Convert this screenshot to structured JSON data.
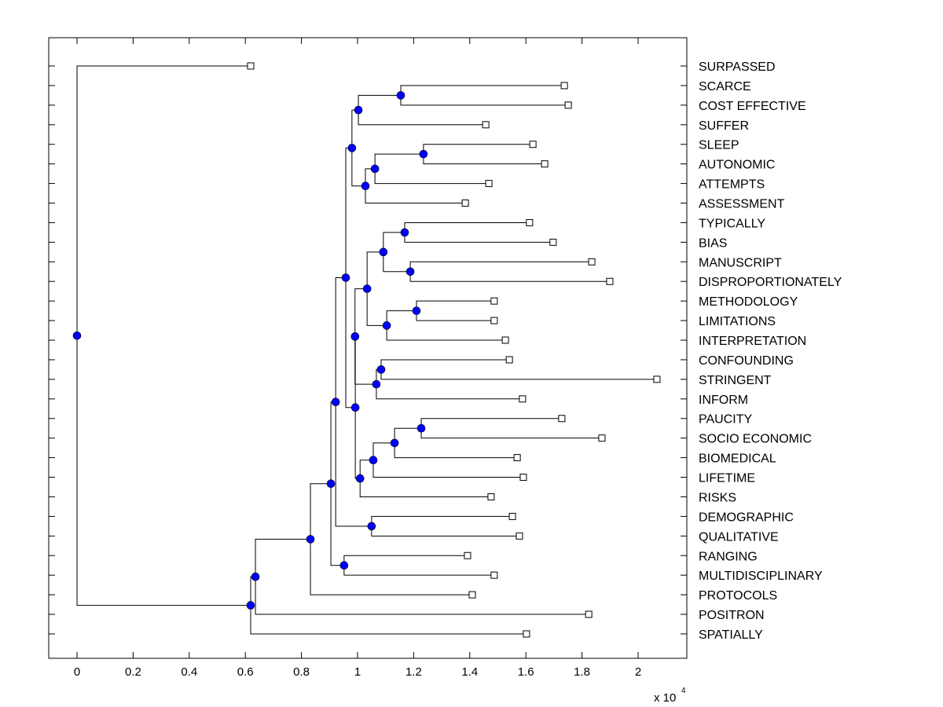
{
  "chart_data": {
    "type": "tree",
    "title": "",
    "xlabel": "",
    "ylabel": "",
    "x_multiplier_label": {
      "base": "x 10",
      "exponent": "4"
    },
    "xlim": [
      -0.1,
      2.17
    ],
    "xticks": [
      0,
      0.2,
      0.4,
      0.6,
      0.8,
      1,
      1.2,
      1.4,
      1.6,
      1.8,
      2
    ],
    "xtick_labels": [
      "0",
      "0.2",
      "0.4",
      "0.6",
      "0.8",
      "1",
      "1.2",
      "1.4",
      "1.6",
      "1.8",
      "2"
    ],
    "grid": false,
    "leaf_marker": "open-square",
    "node_marker": "filled-circle",
    "node_color": "#0000ff",
    "leaves": [
      {
        "id": "L0",
        "label": "SURPASSED",
        "x": 0.619
      },
      {
        "id": "L1",
        "label": "SCARCE",
        "x": 1.737
      },
      {
        "id": "L2",
        "label": "COST EFFECTIVE",
        "x": 1.751
      },
      {
        "id": "L3",
        "label": "SUFFER",
        "x": 1.457
      },
      {
        "id": "L4",
        "label": "SLEEP",
        "x": 1.625
      },
      {
        "id": "L5",
        "label": "AUTONOMIC",
        "x": 1.667
      },
      {
        "id": "L6",
        "label": "ATTEMPTS",
        "x": 1.468
      },
      {
        "id": "L7",
        "label": "ASSESSMENT",
        "x": 1.384
      },
      {
        "id": "L8",
        "label": "TYPICALLY",
        "x": 1.613
      },
      {
        "id": "L9",
        "label": "BIAS",
        "x": 1.697
      },
      {
        "id": "L10",
        "label": "MANUSCRIPT",
        "x": 1.835
      },
      {
        "id": "L11",
        "label": "DISPROPORTIONATELY",
        "x": 1.899
      },
      {
        "id": "L12",
        "label": "METHODOLOGY",
        "x": 1.487
      },
      {
        "id": "L13",
        "label": "LIMITATIONS",
        "x": 1.487
      },
      {
        "id": "L14",
        "label": "INTERPRETATION",
        "x": 1.527
      },
      {
        "id": "L15",
        "label": "CONFOUNDING",
        "x": 1.541
      },
      {
        "id": "L16",
        "label": "STRINGENT",
        "x": 2.067
      },
      {
        "id": "L17",
        "label": "INFORM",
        "x": 1.588
      },
      {
        "id": "L18",
        "label": "PAUCITY",
        "x": 1.728
      },
      {
        "id": "L19",
        "label": "SOCIO ECONOMIC",
        "x": 1.871
      },
      {
        "id": "L20",
        "label": "BIOMEDICAL",
        "x": 1.569
      },
      {
        "id": "L21",
        "label": "LIFETIME",
        "x": 1.591
      },
      {
        "id": "L22",
        "label": "RISKS",
        "x": 1.476
      },
      {
        "id": "L23",
        "label": "DEMOGRAPHIC",
        "x": 1.552
      },
      {
        "id": "L24",
        "label": "QUALITATIVE",
        "x": 1.577
      },
      {
        "id": "L25",
        "label": "RANGING",
        "x": 1.392
      },
      {
        "id": "L26",
        "label": "MULTIDISCIPLINARY",
        "x": 1.487
      },
      {
        "id": "L27",
        "label": "PROTOCOLS",
        "x": 1.409
      },
      {
        "id": "L28",
        "label": "POSITRON",
        "x": 1.824
      },
      {
        "id": "L29",
        "label": "SPATIALLY",
        "x": 1.602
      }
    ],
    "nodes": [
      {
        "id": "root",
        "x": 0.0,
        "children": [
          "L0",
          "N_sp"
        ]
      },
      {
        "id": "N_sp",
        "x": 0.619,
        "children": [
          "N_pos",
          "L29"
        ]
      },
      {
        "id": "N_pos",
        "x": 0.636,
        "children": [
          "N_prot",
          "L28"
        ]
      },
      {
        "id": "N_prot",
        "x": 0.832,
        "children": [
          "N_big",
          "L27"
        ]
      },
      {
        "id": "N_big",
        "x": 0.905,
        "children": [
          "N_a",
          "N_rang"
        ]
      },
      {
        "id": "N_rang",
        "x": 0.952,
        "children": [
          "L25",
          "L26"
        ]
      },
      {
        "id": "N_a",
        "x": 0.922,
        "children": [
          "N_b",
          "N_dem"
        ]
      },
      {
        "id": "N_dem",
        "x": 1.05,
        "children": [
          "L23",
          "L24"
        ]
      },
      {
        "id": "N_b",
        "x": 0.958,
        "children": [
          "N_top",
          "N_d"
        ]
      },
      {
        "id": "N_top",
        "x": 0.98,
        "children": [
          "N_cost",
          "N_att"
        ]
      },
      {
        "id": "N_cost",
        "x": 1.003,
        "children": [
          "N_sc",
          "L3"
        ]
      },
      {
        "id": "N_sc",
        "x": 1.154,
        "children": [
          "L1",
          "L2"
        ]
      },
      {
        "id": "N_att",
        "x": 1.028,
        "children": [
          "N_aut",
          "L7"
        ]
      },
      {
        "id": "N_aut",
        "x": 1.062,
        "children": [
          "N_sl",
          "L6"
        ]
      },
      {
        "id": "N_sl",
        "x": 1.235,
        "children": [
          "L4",
          "L5"
        ]
      },
      {
        "id": "N_d",
        "x": 0.992,
        "children": [
          "N_c",
          "N_g"
        ]
      },
      {
        "id": "N_c",
        "x": 0.991,
        "children": [
          "N_e",
          "N_f"
        ]
      },
      {
        "id": "N_e",
        "x": 1.034,
        "children": [
          "N_h",
          "N_lim"
        ]
      },
      {
        "id": "N_h",
        "x": 1.092,
        "children": [
          "N_typ",
          "N_man"
        ]
      },
      {
        "id": "N_typ",
        "x": 1.168,
        "children": [
          "L8",
          "L9"
        ]
      },
      {
        "id": "N_man",
        "x": 1.188,
        "children": [
          "L10",
          "L11"
        ]
      },
      {
        "id": "N_lim",
        "x": 1.104,
        "children": [
          "N_meth",
          "L14"
        ]
      },
      {
        "id": "N_meth",
        "x": 1.21,
        "children": [
          "L12",
          "L13"
        ]
      },
      {
        "id": "N_f",
        "x": 1.067,
        "children": [
          "N_conf",
          "L17"
        ]
      },
      {
        "id": "N_conf",
        "x": 1.084,
        "children": [
          "L15",
          "L16"
        ]
      },
      {
        "id": "N_g",
        "x": 1.009,
        "children": [
          "N_bio",
          "L22"
        ]
      },
      {
        "id": "N_bio",
        "x": 1.056,
        "children": [
          "N_soc",
          "L21"
        ]
      },
      {
        "id": "N_soc",
        "x": 1.132,
        "children": [
          "N_pau",
          "L20"
        ]
      },
      {
        "id": "N_pau",
        "x": 1.227,
        "children": [
          "L18",
          "L19"
        ]
      }
    ]
  }
}
